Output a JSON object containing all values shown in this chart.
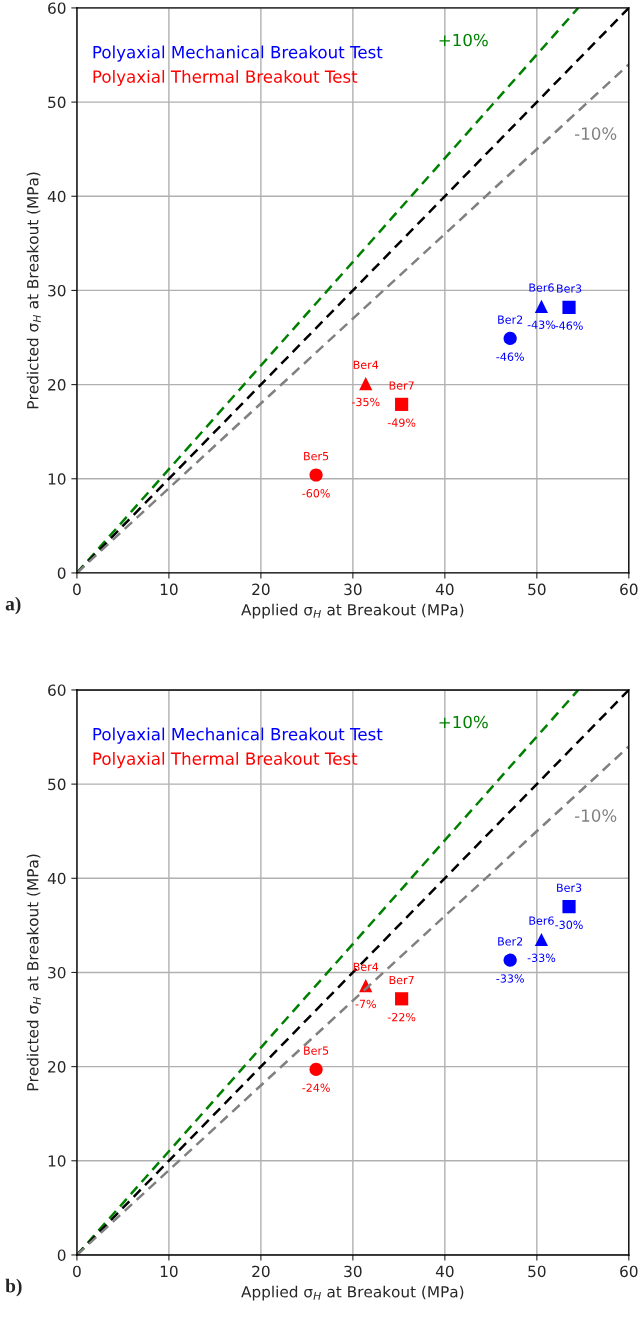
{
  "chart_data": [
    {
      "type": "scatter",
      "xlabel": "Applied σ$_{H}$ at Breakout (MPa)",
      "ylabel": "Predicted σ$_{H}$ at Breakout (MPa)",
      "xlim": [
        0,
        60
      ],
      "ylim": [
        0,
        60
      ],
      "xticks": [
        0,
        10,
        20,
        30,
        40,
        50,
        60
      ],
      "yticks": [
        0,
        10,
        20,
        30,
        40,
        50,
        60
      ],
      "grid": true,
      "legend": "top left",
      "series": [
        {
          "name": "Polyaxial Mechanical Breakout Test",
          "color": "#0000ff",
          "x": [
            47.1,
            50.5,
            53.5
          ],
          "values": [
            24.9,
            28.3,
            28.2
          ],
          "marker": [
            "circle",
            "triangle",
            "square"
          ]
        },
        {
          "name": "Polyaxial Thermal Breakout Test",
          "color": "#ff0000",
          "x": [
            26.0,
            31.4,
            35.3
          ],
          "values": [
            10.4,
            20.1,
            17.9
          ],
          "marker": [
            "circle",
            "triangle",
            "square"
          ]
        },
        {
          "type": "line",
          "name": "+10%",
          "color": "#008000",
          "x": [
            0,
            54.5
          ],
          "values": [
            0,
            60
          ],
          "line_style": "dashed"
        },
        {
          "type": "line",
          "color": "#000000",
          "x": [
            0,
            60
          ],
          "values": [
            0,
            60
          ],
          "line_style": "dashed"
        },
        {
          "type": "line",
          "name": "-10%",
          "color": "#808080",
          "x": [
            0,
            60
          ],
          "values": [
            0,
            54
          ],
          "line_style": "dashed"
        }
      ],
      "annotations": [
        {
          "text": "Ber2",
          "x": 47.1,
          "y": 24.9
        },
        {
          "text": "-46%",
          "x": 47.1,
          "y": 24.9
        },
        {
          "text": "Ber6",
          "x": 50.5,
          "y": 28.3
        },
        {
          "text": "-43%",
          "x": 50.5,
          "y": 28.3
        },
        {
          "text": "Ber3",
          "x": 53.5,
          "y": 28.2
        },
        {
          "text": "-46%",
          "x": 53.5,
          "y": 28.2
        },
        {
          "text": "Ber5",
          "x": 26.0,
          "y": 10.4
        },
        {
          "text": "-60%",
          "x": 26.0,
          "y": 10.4
        },
        {
          "text": "Ber4",
          "x": 31.4,
          "y": 20.1
        },
        {
          "text": "-35%",
          "x": 31.4,
          "y": 20.1
        },
        {
          "text": "Ber7",
          "x": 35.3,
          "y": 17.9
        },
        {
          "text": "-49%",
          "x": 35.3,
          "y": 17.9
        },
        "a)"
      ]
    },
    {
      "type": "scatter",
      "xlabel": "Applied σ$_{H}$ at Breakout (MPa)",
      "ylabel": "Predicted σ$_{H}$ at Breakout (MPa)",
      "xlim": [
        0,
        60
      ],
      "ylim": [
        0,
        60
      ],
      "xticks": [
        0,
        10,
        20,
        30,
        40,
        50,
        60
      ],
      "yticks": [
        0,
        10,
        20,
        30,
        40,
        50,
        60
      ],
      "grid": true,
      "legend": "top left",
      "series": [
        {
          "name": "Polyaxial Mechanical Breakout Test",
          "color": "#0000ff",
          "x": [
            47.1,
            50.5,
            53.5
          ],
          "values": [
            31.3,
            33.5,
            37.0
          ],
          "marker": [
            "circle",
            "triangle",
            "square"
          ]
        },
        {
          "name": "Polyaxial Thermal Breakout Test",
          "color": "#ff0000",
          "x": [
            26.0,
            31.4,
            35.3
          ],
          "values": [
            19.7,
            28.6,
            27.2
          ],
          "marker": [
            "circle",
            "triangle",
            "square"
          ]
        },
        {
          "type": "line",
          "name": "+10%",
          "color": "#008000",
          "x": [
            0,
            54.5
          ],
          "values": [
            0,
            60
          ],
          "line_style": "dashed"
        },
        {
          "type": "line",
          "color": "#000000",
          "x": [
            0,
            60
          ],
          "values": [
            0,
            60
          ],
          "line_style": "dashed"
        },
        {
          "type": "line",
          "name": "-10%",
          "color": "#808080",
          "x": [
            0,
            60
          ],
          "values": [
            0,
            54
          ],
          "line_style": "dashed"
        }
      ],
      "annotations": [
        {
          "text": "Ber2",
          "x": 47.1,
          "y": 31.3
        },
        {
          "text": "-33%",
          "x": 47.1,
          "y": 31.3
        },
        {
          "text": "Ber6",
          "x": 50.5,
          "y": 33.5
        },
        {
          "text": "-33%",
          "x": 50.5,
          "y": 33.5
        },
        {
          "text": "Ber3",
          "x": 53.5,
          "y": 37.0
        },
        {
          "text": "-30%",
          "x": 53.5,
          "y": 37.0
        },
        {
          "text": "Ber5",
          "x": 26.0,
          "y": 19.7
        },
        {
          "text": "-24%",
          "x": 26.0,
          "y": 19.7
        },
        {
          "text": "Ber4",
          "x": 31.4,
          "y": 28.6
        },
        {
          "text": "-7%",
          "x": 31.4,
          "y": 28.6
        },
        {
          "text": "Ber7",
          "x": 35.3,
          "y": 27.2
        },
        {
          "text": "-22%",
          "x": 35.3,
          "y": 27.2
        },
        "b)"
      ]
    }
  ]
}
